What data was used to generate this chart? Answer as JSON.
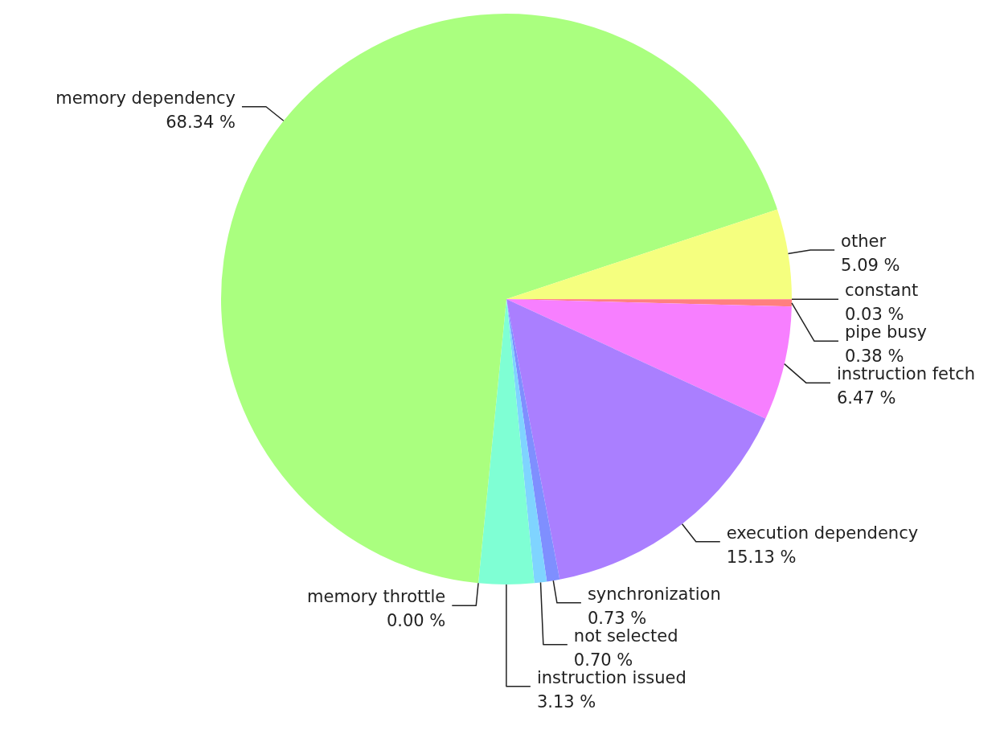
{
  "chart_data": {
    "type": "pie",
    "categories": [
      "constant",
      "pipe busy",
      "instruction fetch",
      "execution dependency",
      "synchronization",
      "not selected",
      "instruction issued",
      "memory throttle",
      "memory dependency",
      "other"
    ],
    "values": [
      0.03,
      0.38,
      6.47,
      15.13,
      0.73,
      0.7,
      3.13,
      0.0,
      68.34,
      5.09
    ],
    "value_labels": [
      "0.03 %",
      "0.38 %",
      "6.47 %",
      "15.13 %",
      "0.73 %",
      "0.70 %",
      "3.13 %",
      "0.00 %",
      "68.34 %",
      "5.09 %"
    ],
    "colors": [
      "#ff7f8f",
      "#ff7f7f",
      "#f77fff",
      "#aa7fff",
      "#7f8fff",
      "#7fd4ff",
      "#7fffd4",
      "#7fffaa",
      "#aaff7f",
      "#f5ff7f"
    ]
  }
}
